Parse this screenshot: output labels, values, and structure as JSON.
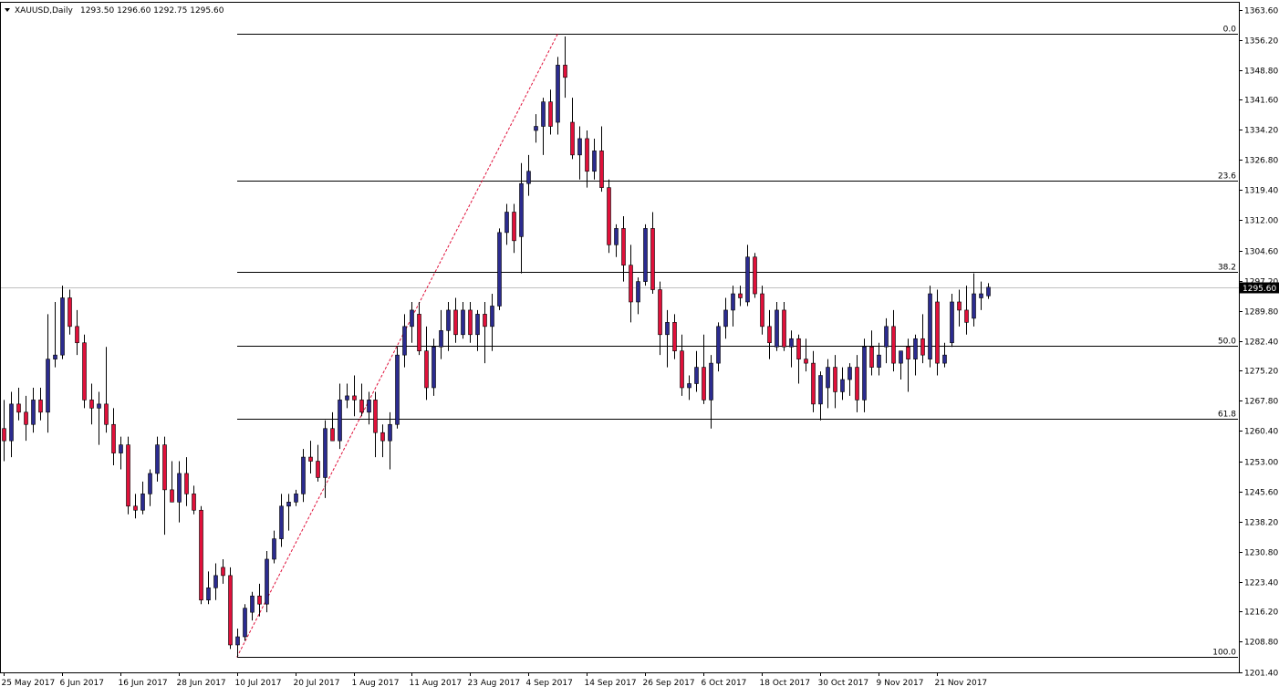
{
  "window": {
    "symbol_label": "XAUUSD,Daily",
    "ohlc_label": "1293.50 1296.60 1292.75 1295.60"
  },
  "price_marker": {
    "value": 1295.6,
    "label": "1295.60",
    "bg_color": "#000000",
    "text_color": "#ffffff"
  },
  "colors": {
    "bull": "#2b2b8f",
    "bear": "#e0103a",
    "wick": "#000000",
    "fib_line": "#000000",
    "trend_line": "#e0103a",
    "price_line": "#c0c0c0"
  },
  "chart_data": {
    "type": "candlestick",
    "instrument": "XAUUSD",
    "timeframe": "Daily",
    "ylim": [
      1201.4,
      1364.6
    ],
    "y_ticks": [
      1363.6,
      1356.2,
      1348.8,
      1341.6,
      1334.2,
      1326.8,
      1319.4,
      1312.0,
      1304.6,
      1297.2,
      1289.8,
      1282.4,
      1275.2,
      1267.8,
      1260.4,
      1253.0,
      1245.6,
      1238.2,
      1230.8,
      1223.4,
      1216.2,
      1208.8,
      1201.4
    ],
    "y_tick_labels": [
      "1363.60",
      "1356.20",
      "1348.80",
      "1341.60",
      "1334.20",
      "1326.80",
      "1319.40",
      "1312.00",
      "1304.60",
      "1297.20",
      "1289.80",
      "1282.40",
      "1275.20",
      "1267.80",
      "1260.40",
      "1253.00",
      "1245.60",
      "1238.20",
      "1230.80",
      "1223.40",
      "1216.20",
      "1208.80",
      "1201.40"
    ],
    "x_tick_labels": [
      {
        "label": "25 May 2017",
        "index": 0
      },
      {
        "label": "6 Jun 2017",
        "index": 8
      },
      {
        "label": "16 Jun 2017",
        "index": 16
      },
      {
        "label": "28 Jun 2017",
        "index": 24
      },
      {
        "label": "10 Jul 2017",
        "index": 32
      },
      {
        "label": "20 Jul 2017",
        "index": 40
      },
      {
        "label": "1 Aug 2017",
        "index": 48
      },
      {
        "label": "11 Aug 2017",
        "index": 56
      },
      {
        "label": "23 Aug 2017",
        "index": 64
      },
      {
        "label": "4 Sep 2017",
        "index": 72
      },
      {
        "label": "14 Sep 2017",
        "index": 80
      },
      {
        "label": "26 Sep 2017",
        "index": 88
      },
      {
        "label": "6 Oct 2017",
        "index": 96
      },
      {
        "label": "18 Oct 2017",
        "index": 104
      },
      {
        "label": "30 Oct 2017",
        "index": 112
      },
      {
        "label": "9 Nov 2017",
        "index": 120
      },
      {
        "label": "21 Nov 2017",
        "index": 128
      }
    ],
    "fibonacci": {
      "start_index": 32,
      "swing_low": 1205.0,
      "swing_high": 1357.6,
      "levels": [
        {
          "label": "0.0",
          "price": 1357.6
        },
        {
          "label": "23.6",
          "price": 1321.6
        },
        {
          "label": "38.2",
          "price": 1299.3
        },
        {
          "label": "50.0",
          "price": 1281.3
        },
        {
          "label": "61.8",
          "price": 1263.3
        },
        {
          "label": "100.0",
          "price": 1205.0
        }
      ]
    },
    "trend_line": {
      "from": {
        "index": 32,
        "price": 1205.0
      },
      "to": {
        "index": 76,
        "price": 1357.6
      }
    },
    "last_price": 1295.6,
    "candles": [
      {
        "o": 1261,
        "h": 1268,
        "l": 1253,
        "c": 1258
      },
      {
        "o": 1258,
        "h": 1270,
        "l": 1254,
        "c": 1267
      },
      {
        "o": 1267,
        "h": 1271,
        "l": 1263,
        "c": 1265
      },
      {
        "o": 1265,
        "h": 1269,
        "l": 1258,
        "c": 1262
      },
      {
        "o": 1262,
        "h": 1271,
        "l": 1260,
        "c": 1268
      },
      {
        "o": 1268,
        "h": 1271,
        "l": 1263,
        "c": 1265
      },
      {
        "o": 1265,
        "h": 1289,
        "l": 1260,
        "c": 1278
      },
      {
        "o": 1278,
        "h": 1292,
        "l": 1276,
        "c": 1279
      },
      {
        "o": 1279,
        "h": 1296,
        "l": 1278,
        "c": 1293
      },
      {
        "o": 1293,
        "h": 1295,
        "l": 1284,
        "c": 1286
      },
      {
        "o": 1286,
        "h": 1290,
        "l": 1279,
        "c": 1282
      },
      {
        "o": 1282,
        "h": 1284,
        "l": 1266,
        "c": 1268
      },
      {
        "o": 1268,
        "h": 1272,
        "l": 1262,
        "c": 1266
      },
      {
        "o": 1266,
        "h": 1270,
        "l": 1257,
        "c": 1267
      },
      {
        "o": 1267,
        "h": 1281,
        "l": 1260,
        "c": 1262
      },
      {
        "o": 1262,
        "h": 1266,
        "l": 1252,
        "c": 1255
      },
      {
        "o": 1255,
        "h": 1259,
        "l": 1251,
        "c": 1257
      },
      {
        "o": 1257,
        "h": 1259,
        "l": 1240,
        "c": 1242
      },
      {
        "o": 1242,
        "h": 1245,
        "l": 1239,
        "c": 1241
      },
      {
        "o": 1241,
        "h": 1248,
        "l": 1240,
        "c": 1245
      },
      {
        "o": 1245,
        "h": 1251,
        "l": 1242,
        "c": 1250
      },
      {
        "o": 1250,
        "h": 1259,
        "l": 1248,
        "c": 1257
      },
      {
        "o": 1257,
        "h": 1259,
        "l": 1235,
        "c": 1246
      },
      {
        "o": 1246,
        "h": 1253,
        "l": 1243,
        "c": 1243
      },
      {
        "o": 1243,
        "h": 1253,
        "l": 1238,
        "c": 1250
      },
      {
        "o": 1250,
        "h": 1254,
        "l": 1242,
        "c": 1245
      },
      {
        "o": 1245,
        "h": 1247,
        "l": 1240,
        "c": 1241
      },
      {
        "o": 1241,
        "h": 1242,
        "l": 1218,
        "c": 1219
      },
      {
        "o": 1219,
        "h": 1226,
        "l": 1218,
        "c": 1222
      },
      {
        "o": 1222,
        "h": 1228,
        "l": 1219,
        "c": 1225
      },
      {
        "o": 1227,
        "h": 1229,
        "l": 1223,
        "c": 1225
      },
      {
        "o": 1225,
        "h": 1227,
        "l": 1207,
        "c": 1208
      },
      {
        "o": 1208,
        "h": 1212,
        "l": 1205,
        "c": 1210
      },
      {
        "o": 1210,
        "h": 1218,
        "l": 1209,
        "c": 1217
      },
      {
        "o": 1216,
        "h": 1221,
        "l": 1214,
        "c": 1220
      },
      {
        "o": 1220,
        "h": 1223,
        "l": 1215,
        "c": 1218
      },
      {
        "o": 1218,
        "h": 1231,
        "l": 1216,
        "c": 1229
      },
      {
        "o": 1229,
        "h": 1236,
        "l": 1228,
        "c": 1234
      },
      {
        "o": 1234,
        "h": 1245,
        "l": 1232,
        "c": 1242
      },
      {
        "o": 1242,
        "h": 1245,
        "l": 1236,
        "c": 1243
      },
      {
        "o": 1243,
        "h": 1246,
        "l": 1242,
        "c": 1245
      },
      {
        "o": 1245,
        "h": 1256,
        "l": 1243,
        "c": 1254
      },
      {
        "o": 1254,
        "h": 1258,
        "l": 1250,
        "c": 1253
      },
      {
        "o": 1253,
        "h": 1257,
        "l": 1248,
        "c": 1249
      },
      {
        "o": 1249,
        "h": 1263,
        "l": 1244,
        "c": 1261
      },
      {
        "o": 1261,
        "h": 1265,
        "l": 1258,
        "c": 1258
      },
      {
        "o": 1258,
        "h": 1272,
        "l": 1256,
        "c": 1268
      },
      {
        "o": 1268,
        "h": 1272,
        "l": 1266,
        "c": 1269
      },
      {
        "o": 1269,
        "h": 1274,
        "l": 1264,
        "c": 1268
      },
      {
        "o": 1268,
        "h": 1272,
        "l": 1264,
        "c": 1265
      },
      {
        "o": 1265,
        "h": 1270,
        "l": 1262,
        "c": 1268
      },
      {
        "o": 1268,
        "h": 1270,
        "l": 1254,
        "c": 1260
      },
      {
        "o": 1260,
        "h": 1262,
        "l": 1254,
        "c": 1258
      },
      {
        "o": 1258,
        "h": 1265,
        "l": 1251,
        "c": 1262
      },
      {
        "o": 1262,
        "h": 1281,
        "l": 1261,
        "c": 1279
      },
      {
        "o": 1279,
        "h": 1289,
        "l": 1276,
        "c": 1286
      },
      {
        "o": 1286,
        "h": 1292,
        "l": 1282,
        "c": 1290
      },
      {
        "o": 1289,
        "h": 1292,
        "l": 1279,
        "c": 1280
      },
      {
        "o": 1280,
        "h": 1286,
        "l": 1268,
        "c": 1271
      },
      {
        "o": 1271,
        "h": 1283,
        "l": 1269,
        "c": 1281
      },
      {
        "o": 1281,
        "h": 1290,
        "l": 1278,
        "c": 1285
      },
      {
        "o": 1285,
        "h": 1292,
        "l": 1280,
        "c": 1290
      },
      {
        "o": 1290,
        "h": 1293,
        "l": 1282,
        "c": 1284
      },
      {
        "o": 1284,
        "h": 1292,
        "l": 1283,
        "c": 1290
      },
      {
        "o": 1290,
        "h": 1292,
        "l": 1282,
        "c": 1284
      },
      {
        "o": 1284,
        "h": 1290,
        "l": 1280,
        "c": 1289
      },
      {
        "o": 1289,
        "h": 1292,
        "l": 1277,
        "c": 1286
      },
      {
        "o": 1286,
        "h": 1294,
        "l": 1280,
        "c": 1291
      },
      {
        "o": 1291,
        "h": 1310,
        "l": 1290,
        "c": 1309
      },
      {
        "o": 1309,
        "h": 1316,
        "l": 1306,
        "c": 1314
      },
      {
        "o": 1314,
        "h": 1316,
        "l": 1304,
        "c": 1307
      },
      {
        "o": 1308,
        "h": 1326,
        "l": 1299,
        "c": 1321
      },
      {
        "o": 1321,
        "h": 1328,
        "l": 1318,
        "c": 1324
      },
      {
        "o": 1334,
        "h": 1338,
        "l": 1331,
        "c": 1335
      },
      {
        "o": 1335,
        "h": 1342,
        "l": 1328,
        "c": 1341
      },
      {
        "o": 1341,
        "h": 1344,
        "l": 1333,
        "c": 1335
      },
      {
        "o": 1336,
        "h": 1352,
        "l": 1333,
        "c": 1350
      },
      {
        "o": 1350,
        "h": 1357,
        "l": 1342,
        "c": 1347
      },
      {
        "o": 1336,
        "h": 1342,
        "l": 1327,
        "c": 1328
      },
      {
        "o": 1328,
        "h": 1335,
        "l": 1322,
        "c": 1332
      },
      {
        "o": 1332,
        "h": 1334,
        "l": 1320,
        "c": 1324
      },
      {
        "o": 1324,
        "h": 1332,
        "l": 1322,
        "c": 1329
      },
      {
        "o": 1329,
        "h": 1335,
        "l": 1319,
        "c": 1320
      },
      {
        "o": 1320,
        "h": 1322,
        "l": 1304,
        "c": 1306
      },
      {
        "o": 1306,
        "h": 1311,
        "l": 1303,
        "c": 1310
      },
      {
        "o": 1310,
        "h": 1313,
        "l": 1297,
        "c": 1301
      },
      {
        "o": 1301,
        "h": 1306,
        "l": 1287,
        "c": 1292
      },
      {
        "o": 1292,
        "h": 1298,
        "l": 1289,
        "c": 1297
      },
      {
        "o": 1297,
        "h": 1311,
        "l": 1296,
        "c": 1310
      },
      {
        "o": 1310,
        "h": 1314,
        "l": 1294,
        "c": 1295
      },
      {
        "o": 1295,
        "h": 1297,
        "l": 1279,
        "c": 1284
      },
      {
        "o": 1284,
        "h": 1290,
        "l": 1276,
        "c": 1287
      },
      {
        "o": 1287,
        "h": 1289,
        "l": 1278,
        "c": 1280
      },
      {
        "o": 1280,
        "h": 1284,
        "l": 1269,
        "c": 1271
      },
      {
        "o": 1271,
        "h": 1274,
        "l": 1268,
        "c": 1272
      },
      {
        "o": 1272,
        "h": 1280,
        "l": 1270,
        "c": 1276
      },
      {
        "o": 1276,
        "h": 1284,
        "l": 1267,
        "c": 1268
      },
      {
        "o": 1268,
        "h": 1279,
        "l": 1261,
        "c": 1277
      },
      {
        "o": 1277,
        "h": 1287,
        "l": 1275,
        "c": 1286
      },
      {
        "o": 1286,
        "h": 1293,
        "l": 1283,
        "c": 1290
      },
      {
        "o": 1290,
        "h": 1296,
        "l": 1286,
        "c": 1294
      },
      {
        "o": 1294,
        "h": 1296,
        "l": 1291,
        "c": 1293
      },
      {
        "o": 1292,
        "h": 1306,
        "l": 1291,
        "c": 1303
      },
      {
        "o": 1303,
        "h": 1304,
        "l": 1293,
        "c": 1294
      },
      {
        "o": 1294,
        "h": 1296,
        "l": 1284,
        "c": 1286
      },
      {
        "o": 1286,
        "h": 1290,
        "l": 1278,
        "c": 1282
      },
      {
        "o": 1281,
        "h": 1292,
        "l": 1280,
        "c": 1290
      },
      {
        "o": 1290,
        "h": 1292,
        "l": 1280,
        "c": 1281
      },
      {
        "o": 1281,
        "h": 1285,
        "l": 1276,
        "c": 1283
      },
      {
        "o": 1283,
        "h": 1284,
        "l": 1272,
        "c": 1278
      },
      {
        "o": 1278,
        "h": 1283,
        "l": 1275,
        "c": 1277
      },
      {
        "o": 1277,
        "h": 1280,
        "l": 1265,
        "c": 1267
      },
      {
        "o": 1267,
        "h": 1275,
        "l": 1263,
        "c": 1274
      },
      {
        "o": 1271,
        "h": 1278,
        "l": 1266,
        "c": 1276
      },
      {
        "o": 1276,
        "h": 1279,
        "l": 1266,
        "c": 1270
      },
      {
        "o": 1270,
        "h": 1276,
        "l": 1268,
        "c": 1273
      },
      {
        "o": 1273,
        "h": 1277,
        "l": 1269,
        "c": 1276
      },
      {
        "o": 1276,
        "h": 1279,
        "l": 1265,
        "c": 1268
      },
      {
        "o": 1268,
        "h": 1283,
        "l": 1265,
        "c": 1281
      },
      {
        "o": 1281,
        "h": 1285,
        "l": 1274,
        "c": 1276
      },
      {
        "o": 1276,
        "h": 1282,
        "l": 1274,
        "c": 1279
      },
      {
        "o": 1281,
        "h": 1288,
        "l": 1277,
        "c": 1286
      },
      {
        "o": 1286,
        "h": 1290,
        "l": 1275,
        "c": 1277
      },
      {
        "o": 1277,
        "h": 1280,
        "l": 1273,
        "c": 1280
      },
      {
        "o": 1281,
        "h": 1283,
        "l": 1270,
        "c": 1278
      },
      {
        "o": 1278,
        "h": 1284,
        "l": 1274,
        "c": 1283
      },
      {
        "o": 1283,
        "h": 1289,
        "l": 1277,
        "c": 1279
      },
      {
        "o": 1278,
        "h": 1296,
        "l": 1276,
        "c": 1294
      },
      {
        "o": 1292,
        "h": 1295,
        "l": 1274,
        "c": 1277
      },
      {
        "o": 1277,
        "h": 1282,
        "l": 1276,
        "c": 1279
      },
      {
        "o": 1282,
        "h": 1294,
        "l": 1281,
        "c": 1292
      },
      {
        "o": 1292,
        "h": 1295,
        "l": 1286,
        "c": 1290
      },
      {
        "o": 1290,
        "h": 1296,
        "l": 1284,
        "c": 1287
      },
      {
        "o": 1288,
        "h": 1299,
        "l": 1286,
        "c": 1294
      },
      {
        "o": 1293,
        "h": 1297,
        "l": 1290,
        "c": 1294
      },
      {
        "o": 1293.5,
        "h": 1296.6,
        "l": 1292.75,
        "c": 1295.6
      }
    ]
  }
}
